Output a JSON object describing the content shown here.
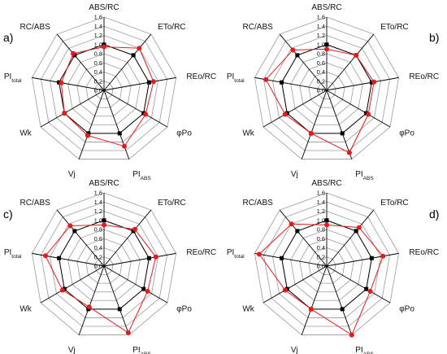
{
  "colors": {
    "black_series": "#000000",
    "red_series": "#e8191c",
    "grid": "#9a9a9a",
    "spoke": "#000000"
  },
  "chart_data": [
    {
      "type": "radar",
      "panel": "a)",
      "axes": [
        {
          "name": "ABS/RC",
          "sub": ""
        },
        {
          "name": "ETo/RC",
          "sub": ""
        },
        {
          "name": "REo/RC",
          "sub": ""
        },
        {
          "name": "φPo",
          "sub": ""
        },
        {
          "name": "PI",
          "sub": "ABS"
        },
        {
          "name": "Vj",
          "sub": ""
        },
        {
          "name": "Wk",
          "sub": ""
        },
        {
          "name": "PI",
          "sub": "total"
        },
        {
          "name": "RC/ABS",
          "sub": ""
        }
      ],
      "ticks": [
        "0.0",
        "0.2",
        "0.4",
        "0.6",
        "0.8",
        "1.0",
        "1.2",
        "1.4",
        "1.6"
      ],
      "rlim": [
        0,
        1.6
      ],
      "series": [
        {
          "color_key": "black_series",
          "values": [
            1.0,
            1.0,
            1.0,
            1.0,
            1.0,
            1.0,
            1.0,
            1.0,
            1.0
          ]
        },
        {
          "color_key": "red_series",
          "values": [
            0.95,
            1.2,
            1.1,
            1.05,
            1.3,
            1.05,
            1.0,
            0.95,
            1.05
          ]
        }
      ]
    },
    {
      "type": "radar",
      "panel": "b)",
      "axes": [
        {
          "name": "ABS/RC",
          "sub": ""
        },
        {
          "name": "ETo/RC",
          "sub": ""
        },
        {
          "name": "REo/RC",
          "sub": ""
        },
        {
          "name": "φPo",
          "sub": ""
        },
        {
          "name": "PI",
          "sub": "ABS"
        },
        {
          "name": "Vj",
          "sub": ""
        },
        {
          "name": "Wk",
          "sub": ""
        },
        {
          "name": "PI",
          "sub": "total"
        },
        {
          "name": "RC/ABS",
          "sub": ""
        }
      ],
      "ticks": [
        "0.0",
        "0.2",
        "0.4",
        "0.6",
        "0.8",
        "1.0",
        "1.2",
        "1.4",
        "1.6"
      ],
      "rlim": [
        0,
        1.6
      ],
      "series": [
        {
          "color_key": "black_series",
          "values": [
            1.0,
            1.0,
            1.0,
            1.0,
            1.0,
            1.0,
            1.0,
            1.0,
            1.0
          ]
        },
        {
          "color_key": "red_series",
          "values": [
            0.9,
            1.0,
            1.05,
            1.05,
            1.45,
            1.0,
            1.05,
            1.35,
            1.15
          ]
        }
      ]
    },
    {
      "type": "radar",
      "panel": "c)",
      "axes": [
        {
          "name": "ABS/RC",
          "sub": ""
        },
        {
          "name": "ETo/RC",
          "sub": ""
        },
        {
          "name": "REo/RC",
          "sub": ""
        },
        {
          "name": "φPo",
          "sub": ""
        },
        {
          "name": "PI",
          "sub": "ABS"
        },
        {
          "name": "Vj",
          "sub": ""
        },
        {
          "name": "Wk",
          "sub": ""
        },
        {
          "name": "PI",
          "sub": "total"
        },
        {
          "name": "RC/ABS",
          "sub": ""
        }
      ],
      "ticks": [
        "0.0",
        "0.2",
        "0.4",
        "0.6",
        "0.8",
        "1.0",
        "1.2",
        "1.4",
        "1.6"
      ],
      "rlim": [
        0,
        1.6
      ],
      "series": [
        {
          "color_key": "black_series",
          "values": [
            1.0,
            1.0,
            1.0,
            1.0,
            1.0,
            1.0,
            1.0,
            1.0,
            1.0
          ]
        },
        {
          "color_key": "red_series",
          "values": [
            0.9,
            1.05,
            1.15,
            1.1,
            1.55,
            0.95,
            1.05,
            1.3,
            1.15
          ]
        }
      ]
    },
    {
      "type": "radar",
      "panel": "d)",
      "axes": [
        {
          "name": "ABS/RC",
          "sub": ""
        },
        {
          "name": "ETo/RC",
          "sub": ""
        },
        {
          "name": "REo/RC",
          "sub": ""
        },
        {
          "name": "φPo",
          "sub": ""
        },
        {
          "name": "PI",
          "sub": "ABS"
        },
        {
          "name": "Vj",
          "sub": ""
        },
        {
          "name": "Wk",
          "sub": ""
        },
        {
          "name": "PI",
          "sub": "total"
        },
        {
          "name": "RC/ABS",
          "sub": ""
        }
      ],
      "ticks": [
        "0.0",
        "0.2",
        "0.4",
        "0.6",
        "0.8",
        "1.0",
        "1.2",
        "1.4",
        "1.6"
      ],
      "rlim": [
        0,
        1.6
      ],
      "series": [
        {
          "color_key": "black_series",
          "values": [
            1.0,
            1.0,
            1.0,
            1.0,
            1.0,
            1.0,
            1.0,
            1.0,
            1.0
          ]
        },
        {
          "color_key": "red_series",
          "values": [
            0.9,
            1.1,
            1.25,
            1.1,
            1.6,
            1.0,
            1.05,
            1.5,
            1.2
          ]
        }
      ]
    }
  ]
}
